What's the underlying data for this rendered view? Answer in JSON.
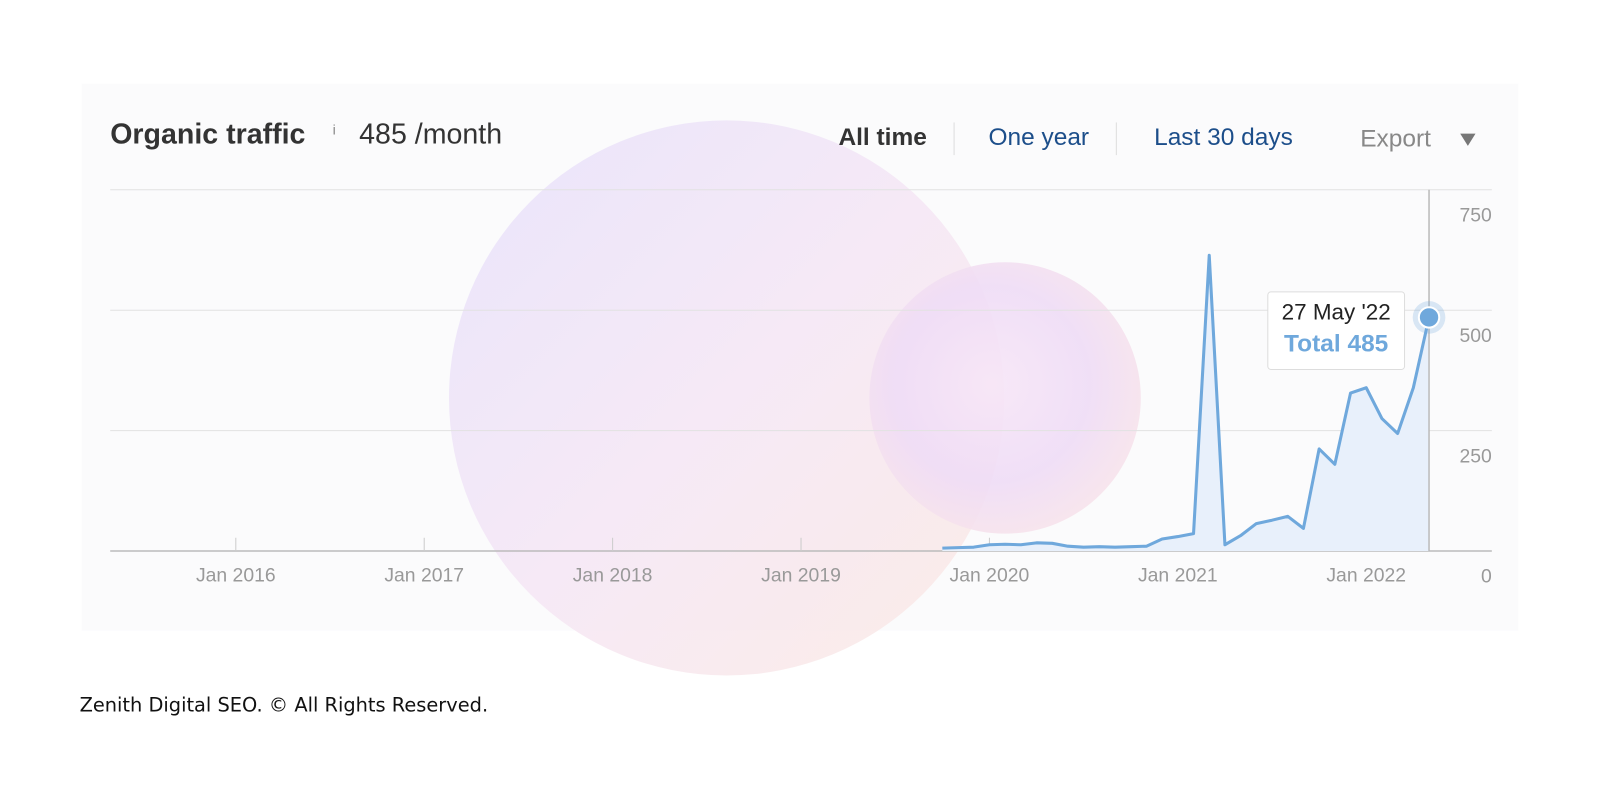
{
  "header": {
    "title": "Organic traffic",
    "info": "i",
    "value": "485 /month",
    "tabs": [
      "All time",
      "One year",
      "Last 30 days"
    ],
    "export": "Export"
  },
  "chart_data": {
    "type": "line",
    "x": [
      "2019-10",
      "2019-11",
      "2019-12",
      "2020-01",
      "2020-02",
      "2020-03",
      "2020-04",
      "2020-05",
      "2020-06",
      "2020-07",
      "2020-08",
      "2020-09",
      "2020-10",
      "2020-11",
      "2020-12",
      "2021-01",
      "2021-02",
      "2021-03",
      "2021-04",
      "2021-05",
      "2021-06",
      "2021-07",
      "2021-08",
      "2021-09",
      "2021-10",
      "2021-11",
      "2021-12",
      "2022-01",
      "2022-02",
      "2022-03",
      "2022-04",
      "2022-05"
    ],
    "values": [
      6,
      7,
      8,
      13,
      14,
      13,
      17,
      16,
      10,
      8,
      9,
      8,
      9,
      10,
      25,
      30,
      36,
      614,
      13,
      32,
      57,
      64,
      72,
      47,
      212,
      180,
      328,
      339,
      275,
      244,
      339,
      485
    ],
    "color": "#6fa8dc",
    "area": true,
    "area_color": "#e8f0fb",
    "xlim": [
      "2015-05",
      "2022-09"
    ],
    "xticks": [
      {
        "value": "2016-01",
        "label": "Jan 2016"
      },
      {
        "value": "2017-01",
        "label": "Jan 2017"
      },
      {
        "value": "2018-01",
        "label": "Jan 2018"
      },
      {
        "value": "2019-01",
        "label": "Jan 2019"
      },
      {
        "value": "2020-01",
        "label": "Jan 2020"
      },
      {
        "value": "2021-01",
        "label": "Jan 2021"
      },
      {
        "value": "2022-01",
        "label": "Jan 2022"
      }
    ],
    "ylim": [
      0,
      750
    ],
    "yticks": [
      0,
      250,
      500,
      750
    ],
    "y_axis_side": "right",
    "grid": true,
    "tooltip": {
      "date": "27 May '22",
      "label": "Total 485"
    }
  },
  "footer": "Zenith Digital SEO. © All Rights Reserved."
}
